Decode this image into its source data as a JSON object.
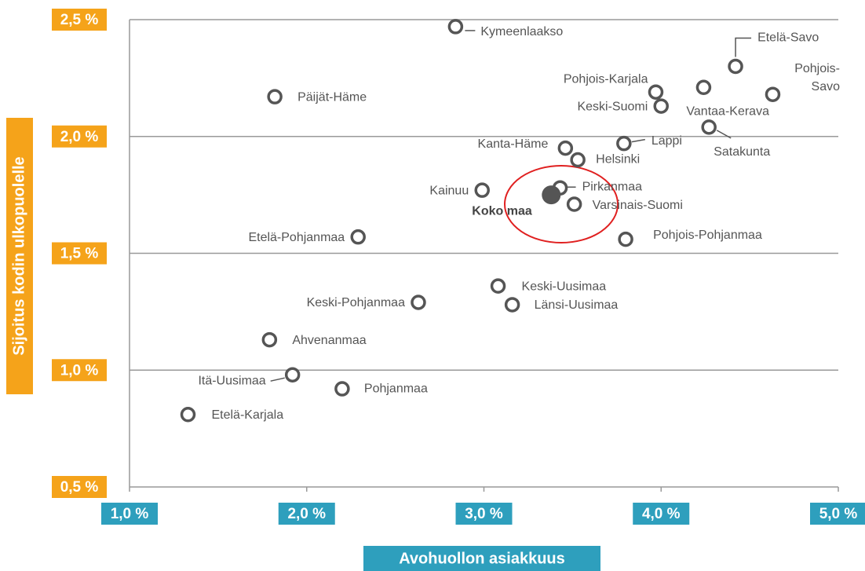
{
  "chart_data": {
    "type": "scatter",
    "xlabel": "Avohuollon asiakkuus",
    "ylabel": "Sijoitus kodin ulkopuolelle",
    "xlim": [
      1.0,
      5.0
    ],
    "ylim": [
      0.5,
      2.5
    ],
    "xticks": [
      {
        "value": 1.0,
        "label": "1,0 %"
      },
      {
        "value": 2.0,
        "label": "2,0 %"
      },
      {
        "value": 3.0,
        "label": "3,0 %"
      },
      {
        "value": 4.0,
        "label": "4,0 %"
      },
      {
        "value": 5.0,
        "label": "5,0 %"
      }
    ],
    "yticks": [
      {
        "value": 0.5,
        "label": "0,5 %"
      },
      {
        "value": 1.0,
        "label": "1,0 %"
      },
      {
        "value": 1.5,
        "label": "1,5 %"
      },
      {
        "value": 2.0,
        "label": "2,0 %"
      },
      {
        "value": 2.5,
        "label": "2,5 %"
      }
    ],
    "grid": true,
    "color": "#555555",
    "point_labels": [
      "Kymeenlaakso",
      "Etelä-Savo",
      "Pohjois-Savo",
      "Vantaa-Kerava",
      "Pohjois-Karjala",
      "Keski-Suomi",
      "Päijät-Häme",
      "Satakunta",
      "Lappi",
      "Kanta-Häme",
      "Helsinki",
      "Kainuu",
      "Pirkanmaa",
      "Koko maa",
      "Varsinais-Suomi",
      "Etelä-Pohjanmaa",
      "Pohjois-Pohjanmaa",
      "Keski-Uusimaa",
      "Keski-Pohjanmaa",
      "Länsi-Uusimaa",
      "Ahvenanmaa",
      "Itä-Uusimaa",
      "Pohjanmaa",
      "Etelä-Karjala"
    ],
    "x": [
      2.84,
      4.42,
      4.63,
      4.24,
      3.97,
      4.0,
      1.82,
      4.27,
      3.79,
      3.46,
      3.53,
      2.99,
      3.43,
      3.38,
      3.51,
      2.29,
      3.8,
      3.08,
      2.63,
      3.16,
      1.79,
      1.92,
      2.2,
      1.33
    ],
    "y": [
      2.47,
      2.3,
      2.18,
      2.21,
      2.19,
      2.13,
      2.17,
      2.04,
      1.97,
      1.95,
      1.9,
      1.77,
      1.78,
      1.75,
      1.71,
      1.57,
      1.56,
      1.36,
      1.29,
      1.28,
      1.13,
      0.98,
      0.92,
      0.81
    ]
  }
}
